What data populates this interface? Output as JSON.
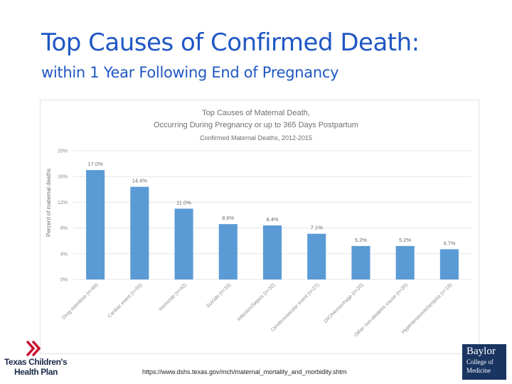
{
  "slide": {
    "title": "Top Causes of Confirmed Death:",
    "subtitle": "within 1 Year Following End of Pregnancy",
    "source_url": "https://www.dshs.texas.gov/mch/maternal_mortality_and_morbidity.shtm"
  },
  "logos": {
    "left_line1": "Texas Children's",
    "left_line2": "Health Plan",
    "right_line1": "Baylor",
    "right_line2": "College of",
    "right_line3": "Medicine"
  },
  "colors": {
    "title": "#1f57c3",
    "bar": "#5b9bd5",
    "gridline": "#e6e6e6",
    "logo_red": "#c8102e",
    "logo_navy": "#1a3561"
  },
  "chart_data": {
    "type": "bar",
    "title": "Top Causes of Maternal Death,",
    "title_line2": "Occurring During Pregnancy or up to 365 Days Postpartum",
    "subtitle": "Confirmed Maternal Deaths, 2012-2015",
    "ylabel": "Percent of maternal deaths",
    "xlabel": "",
    "ylim": [
      0,
      20
    ],
    "yticks": [
      0,
      4,
      8,
      12,
      16,
      20
    ],
    "ytick_labels": [
      "0%",
      "4%",
      "8%",
      "12%",
      "16%",
      "20%"
    ],
    "grid": true,
    "legend": "none",
    "categories": [
      "Drug overdose (n=69)",
      "Cardiac event (n=55)",
      "Homicide (n=42)",
      "Suicide (n=33)",
      "Infection/Sepsis (n=32)",
      "Cerebrovascular event (n=27)",
      "DIC/Hemorrhage (n=20)",
      "Other non-obstetric cause (n=20)",
      "Hypertension/eclampsia (n=18)"
    ],
    "values": [
      17.0,
      14.4,
      11.0,
      8.6,
      8.4,
      7.1,
      5.2,
      5.2,
      4.7
    ],
    "data_labels": [
      "17.0%",
      "14.4%",
      "11.0%",
      "8.6%",
      "8.4%",
      "7.1%",
      "5.2%",
      "5.2%",
      "4.7%"
    ]
  }
}
